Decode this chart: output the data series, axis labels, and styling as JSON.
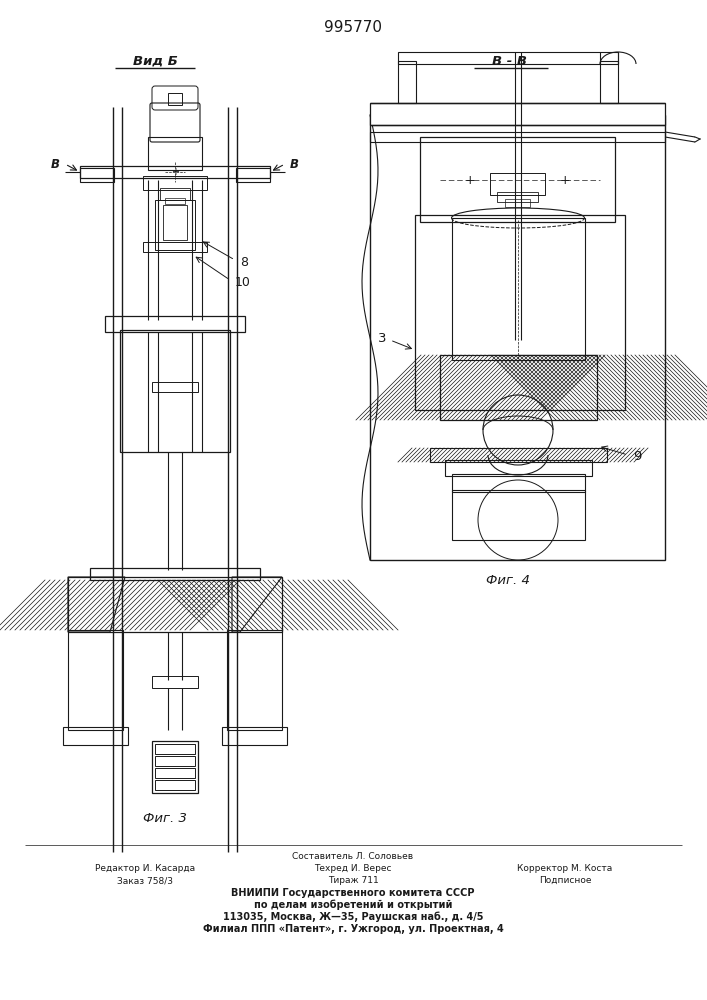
{
  "title": "995770",
  "bg_color": "#ffffff",
  "lc": "#1a1a1a",
  "label_vid_b": "Вид Б",
  "label_vv": "В - В",
  "label_fig3": "Фиг. 3",
  "label_fig4": "Фиг. 4",
  "label_8": "8",
  "label_10": "10",
  "label_3": "3",
  "label_9": "9",
  "footer_line1": "Составитель Л. Соловьев",
  "footer_line2_left": "Редактор И. Касарда",
  "footer_line2_mid": "Техред И. Верес",
  "footer_line2_right": "Корректор М. Коста",
  "footer_line3_left": "Заказ 758/3",
  "footer_line3_mid": "Тираж 711",
  "footer_line3_right": "Подписное",
  "footer_line4": "ВНИИПИ Государственного комитета СССР",
  "footer_line5": "по делам изобретений и открытий",
  "footer_line6": "113035, Москва, Ж—35, Раушская наб., д. 4/5",
  "footer_line7": "Филиал ППП «Патент», г. Ужгород, ул. Проектная, 4"
}
